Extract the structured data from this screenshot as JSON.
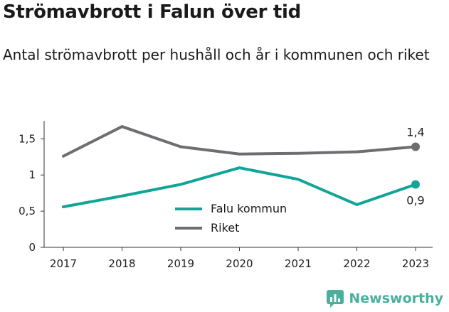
{
  "header": {
    "title": "Strömavbrott i Falun över tid",
    "subtitle": "Antal strömavbrott per hushåll och år i kommunen och riket"
  },
  "brand": {
    "name": "Newsworthy",
    "icon": "bar-chart-logo-icon",
    "color": "#4caf9e"
  },
  "chart_data": {
    "type": "line",
    "x": [
      "2017",
      "2018",
      "2019",
      "2020",
      "2021",
      "2022",
      "2023"
    ],
    "ylim": [
      0,
      1.7
    ],
    "yticks": [
      0,
      0.5,
      1,
      1.5
    ],
    "ytick_labels": [
      "0",
      "0,5",
      "1",
      "1,5"
    ],
    "grid": false,
    "legend_position": "center",
    "series": [
      {
        "name": "Falu kommun",
        "color": "#12a597",
        "values": [
          0.56,
          0.71,
          0.87,
          1.1,
          0.94,
          0.59,
          0.87
        ],
        "end_label": "0,9"
      },
      {
        "name": "Riket",
        "color": "#6d6d72",
        "values": [
          1.26,
          1.67,
          1.39,
          1.29,
          1.3,
          1.32,
          1.39
        ],
        "end_label": "1,4"
      }
    ]
  }
}
